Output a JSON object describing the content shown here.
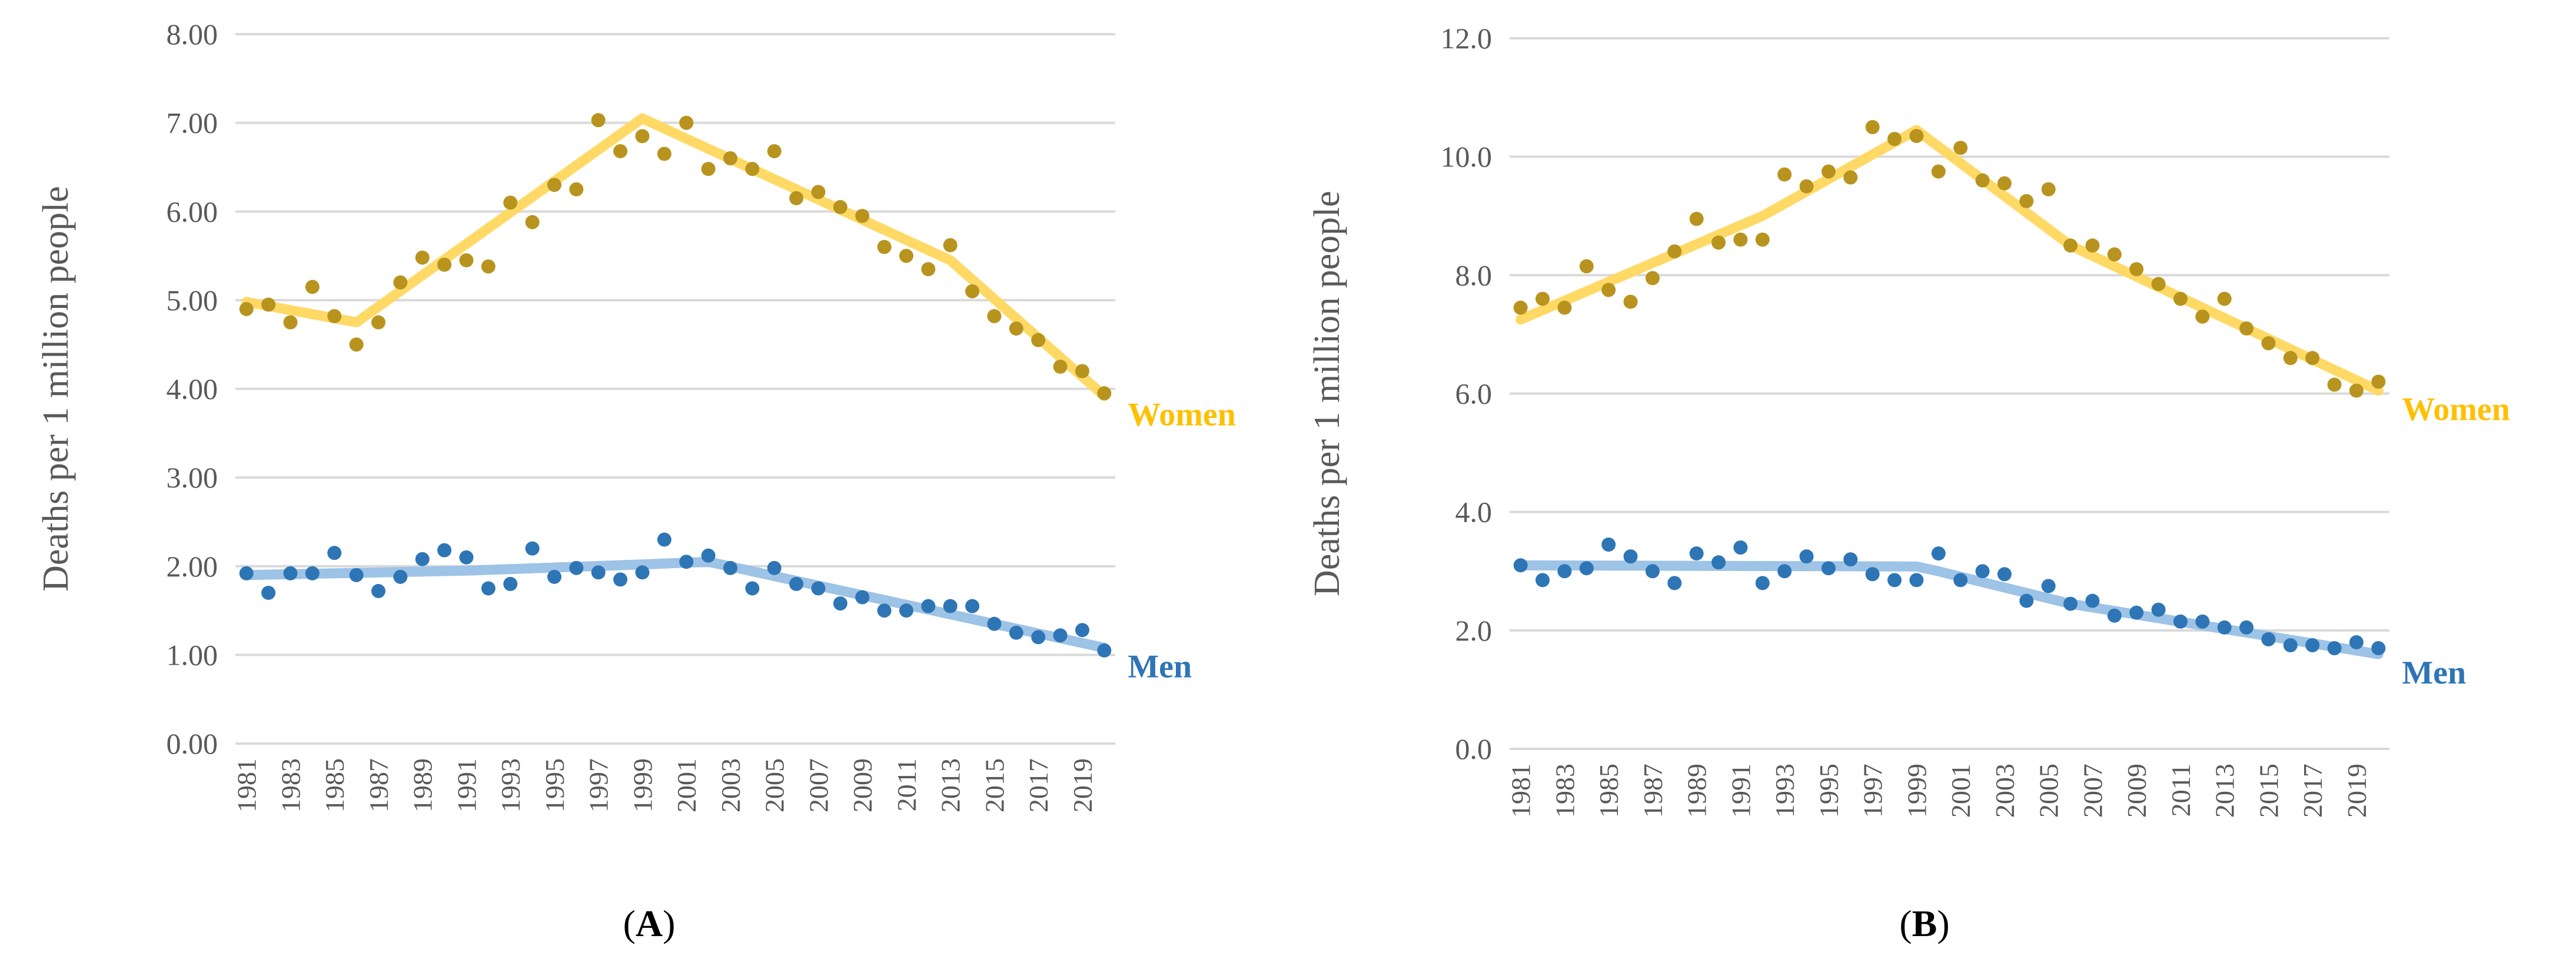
{
  "chart_data": [
    {
      "type": "scatter",
      "panel_label": "A",
      "title": "",
      "xlabel": "",
      "ylabel": "Deaths per 1 million people",
      "ylim": [
        0,
        8
      ],
      "y_ticks": [
        "0.00",
        "1.00",
        "2.00",
        "3.00",
        "4.00",
        "5.00",
        "6.00",
        "7.00",
        "8.00"
      ],
      "x": [
        1981,
        1982,
        1983,
        1984,
        1985,
        1986,
        1987,
        1988,
        1989,
        1990,
        1991,
        1992,
        1993,
        1994,
        1995,
        1996,
        1997,
        1998,
        1999,
        2000,
        2001,
        2002,
        2003,
        2004,
        2005,
        2006,
        2007,
        2008,
        2009,
        2010,
        2011,
        2012,
        2013,
        2014,
        2015,
        2016,
        2017,
        2018,
        2019,
        2020
      ],
      "x_tick_labels": [
        "1981",
        "1983",
        "1985",
        "1987",
        "1989",
        "1991",
        "1993",
        "1995",
        "1997",
        "1999",
        "2001",
        "2003",
        "2005",
        "2007",
        "2009",
        "2011",
        "2013",
        "2015",
        "2017",
        "2019"
      ],
      "grid": true,
      "legend": "none",
      "series": [
        {
          "name": "Women",
          "marker_color": "#b8941f",
          "trend_color": "#ffd966",
          "values": [
            4.9,
            4.95,
            4.75,
            5.15,
            4.82,
            4.5,
            4.75,
            5.2,
            5.48,
            5.4,
            5.45,
            5.38,
            6.1,
            5.88,
            6.3,
            6.25,
            7.03,
            6.68,
            6.85,
            6.65,
            7.0,
            6.48,
            6.6,
            6.48,
            6.68,
            6.15,
            6.22,
            6.05,
            5.95,
            5.6,
            5.5,
            5.35,
            5.62,
            5.1,
            4.82,
            4.68,
            4.55,
            4.25,
            4.2,
            3.95
          ],
          "trend": {
            "x": [
              1981,
              1986,
              1999,
              2013,
              2020
            ],
            "y": [
              4.98,
              4.75,
              7.05,
              5.45,
              3.92
            ]
          }
        },
        {
          "name": "Men",
          "marker_color": "#2e75b6",
          "trend_color": "#9dc3e6",
          "values": [
            1.92,
            1.7,
            1.92,
            1.92,
            2.15,
            1.9,
            1.72,
            1.88,
            2.08,
            2.18,
            2.1,
            1.75,
            1.8,
            2.2,
            1.88,
            1.98,
            1.93,
            1.85,
            1.93,
            2.3,
            2.05,
            2.12,
            1.98,
            1.75,
            1.98,
            1.8,
            1.75,
            1.58,
            1.65,
            1.5,
            1.5,
            1.55,
            1.55,
            1.55,
            1.35,
            1.25,
            1.2,
            1.22,
            1.28,
            1.05
          ],
          "trend": {
            "x": [
              1981,
              1991,
              1999,
              2002,
              2020
            ],
            "y": [
              1.9,
              1.95,
              2.02,
              2.05,
              1.08
            ]
          }
        }
      ]
    },
    {
      "type": "scatter",
      "panel_label": "B",
      "title": "",
      "xlabel": "",
      "ylabel": "Deaths per 1 million people",
      "ylim": [
        0,
        12
      ],
      "y_ticks": [
        "0.0",
        "2.0",
        "4.0",
        "6.0",
        "8.0",
        "10.0",
        "12.0"
      ],
      "x": [
        1981,
        1982,
        1983,
        1984,
        1985,
        1986,
        1987,
        1988,
        1989,
        1990,
        1991,
        1992,
        1993,
        1994,
        1995,
        1996,
        1997,
        1998,
        1999,
        2000,
        2001,
        2002,
        2003,
        2004,
        2005,
        2006,
        2007,
        2008,
        2009,
        2010,
        2011,
        2012,
        2013,
        2014,
        2015,
        2016,
        2017,
        2018,
        2019,
        2020
      ],
      "x_tick_labels": [
        "1981",
        "1983",
        "1985",
        "1987",
        "1989",
        "1991",
        "1993",
        "1995",
        "1997",
        "1999",
        "2001",
        "2003",
        "2005",
        "2007",
        "2009",
        "2011",
        "2013",
        "2015",
        "2017",
        "2019"
      ],
      "grid": true,
      "legend": "none",
      "series": [
        {
          "name": "Women",
          "marker_color": "#b8941f",
          "trend_color": "#ffd966",
          "values": [
            7.45,
            7.6,
            7.45,
            8.15,
            7.75,
            7.55,
            7.95,
            8.4,
            8.95,
            8.55,
            8.6,
            8.6,
            9.7,
            9.5,
            9.75,
            9.65,
            10.5,
            10.3,
            10.35,
            9.75,
            10.15,
            9.6,
            9.55,
            9.25,
            9.45,
            8.5,
            8.5,
            8.35,
            8.1,
            7.85,
            7.6,
            7.3,
            7.6,
            7.1,
            6.85,
            6.6,
            6.6,
            6.15,
            6.05,
            6.2
          ],
          "trend": {
            "x": [
              1981,
              1992,
              1999,
              2006,
              2020
            ],
            "y": [
              7.25,
              9.0,
              10.45,
              8.5,
              6.05
            ]
          }
        },
        {
          "name": "Men",
          "marker_color": "#2e75b6",
          "trend_color": "#9dc3e6",
          "values": [
            3.1,
            2.85,
            3.0,
            3.05,
            3.45,
            3.25,
            3.0,
            2.8,
            3.3,
            3.15,
            3.4,
            2.8,
            3.0,
            3.25,
            3.05,
            3.2,
            2.95,
            2.85,
            2.85,
            3.3,
            2.85,
            3.0,
            2.95,
            2.5,
            2.75,
            2.45,
            2.5,
            2.25,
            2.3,
            2.35,
            2.15,
            2.15,
            2.05,
            2.05,
            1.85,
            1.75,
            1.75,
            1.7,
            1.8,
            1.7
          ],
          "trend": {
            "x": [
              1981,
              1999,
              2000,
              2006,
              2020
            ],
            "y": [
              3.1,
              3.08,
              3.0,
              2.45,
              1.6
            ]
          }
        }
      ]
    }
  ]
}
